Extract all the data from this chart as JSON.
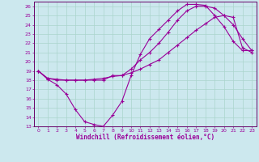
{
  "xlabel": "Windchill (Refroidissement éolien,°C)",
  "bg_color": "#cce8ee",
  "grid_color": "#aad4cc",
  "line_color": "#990099",
  "spine_color": "#660066",
  "xlim": [
    -0.5,
    23.5
  ],
  "ylim": [
    13,
    26.5
  ],
  "xticks": [
    0,
    1,
    2,
    3,
    4,
    5,
    6,
    7,
    8,
    9,
    10,
    11,
    12,
    13,
    14,
    15,
    16,
    17,
    18,
    19,
    20,
    21,
    22,
    23
  ],
  "yticks": [
    13,
    14,
    15,
    16,
    17,
    18,
    19,
    20,
    21,
    22,
    23,
    24,
    25,
    26
  ],
  "line1_x": [
    0,
    1,
    2,
    3,
    4,
    5,
    6,
    7,
    8,
    9,
    10,
    11,
    12,
    13,
    14,
    15,
    16,
    17,
    18,
    19,
    20,
    21,
    22,
    23
  ],
  "line1_y": [
    19.0,
    18.1,
    17.5,
    16.5,
    14.8,
    13.5,
    13.2,
    13.0,
    14.2,
    15.7,
    18.5,
    20.8,
    22.5,
    23.5,
    24.5,
    25.5,
    26.2,
    26.2,
    26.1,
    25.0,
    23.8,
    22.2,
    21.2,
    21.2
  ],
  "line2_x": [
    0,
    1,
    2,
    3,
    4,
    5,
    6,
    7,
    8,
    9,
    10,
    11,
    12,
    13,
    14,
    15,
    16,
    17,
    18,
    19,
    20,
    21,
    22,
    23
  ],
  "line2_y": [
    19.0,
    18.2,
    18.1,
    18.0,
    18.0,
    18.0,
    18.1,
    18.2,
    18.4,
    18.5,
    18.8,
    19.2,
    19.7,
    20.2,
    21.0,
    21.8,
    22.6,
    23.4,
    24.1,
    24.8,
    25.0,
    24.8,
    21.5,
    21.0
  ],
  "line3_x": [
    0,
    1,
    2,
    3,
    4,
    5,
    6,
    7,
    8,
    9,
    10,
    11,
    12,
    13,
    14,
    15,
    16,
    17,
    18,
    19,
    20,
    21,
    22,
    23
  ],
  "line3_y": [
    19.0,
    18.2,
    18.0,
    18.0,
    18.0,
    18.0,
    18.0,
    18.0,
    18.5,
    18.5,
    19.2,
    20.2,
    21.0,
    22.0,
    23.2,
    24.5,
    25.5,
    26.0,
    26.0,
    25.8,
    25.0,
    24.0,
    22.5,
    21.2
  ]
}
